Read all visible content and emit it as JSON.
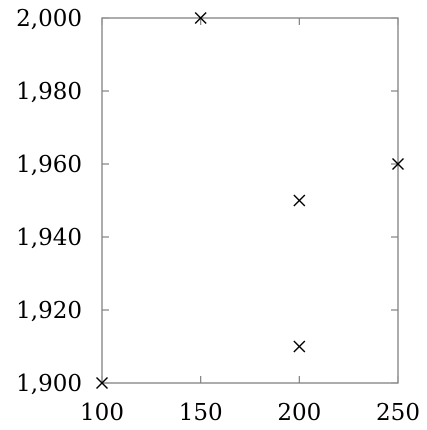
{
  "chart_data": {
    "type": "scatter",
    "title": "",
    "xlabel": "",
    "ylabel": "",
    "xlim": [
      100,
      250
    ],
    "ylim": [
      1900,
      2000
    ],
    "x_ticks": [
      100,
      150,
      200,
      250
    ],
    "x_tick_labels": [
      "100",
      "150",
      "200",
      "250"
    ],
    "y_ticks": [
      1900,
      1920,
      1940,
      1960,
      1980,
      2000
    ],
    "y_tick_labels": [
      "1,900",
      "1,920",
      "1,940",
      "1,960",
      "1,980",
      "2,000"
    ],
    "grid": false,
    "marker": "cross",
    "colors": {
      "marker": "#000000",
      "axis": "#808080"
    },
    "series": [
      {
        "x": [
          100,
          150,
          200,
          200,
          250
        ],
        "y": [
          1900,
          2000,
          1950,
          1910,
          1960
        ]
      }
    ]
  }
}
